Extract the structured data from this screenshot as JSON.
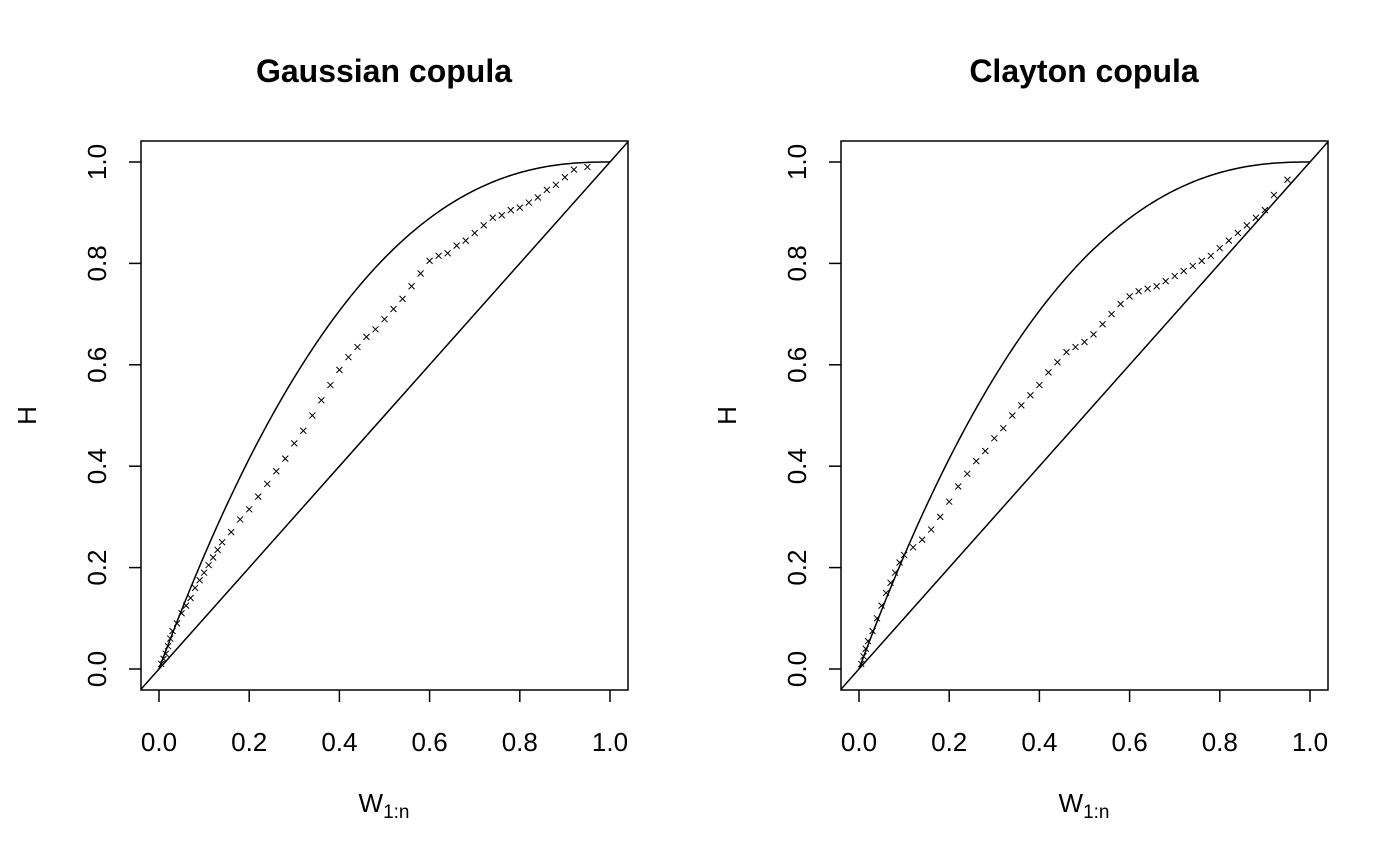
{
  "chart_data": [
    {
      "type": "scatter",
      "title": "Gaussian copula",
      "xlabel": "W",
      "xlabel_subscript": "1:n",
      "ylabel": "H",
      "xlim": [
        0.0,
        1.0
      ],
      "ylim": [
        0.0,
        1.0
      ],
      "xticks": [
        "0.0",
        "0.2",
        "0.4",
        "0.6",
        "0.8",
        "1.0"
      ],
      "yticks": [
        "0.0",
        "0.2",
        "0.4",
        "0.6",
        "0.8",
        "1.0"
      ],
      "grid": false,
      "marker": "x",
      "reference_curves": [
        "diagonal y = x",
        "upper bound curve from (0,0) to (1,1)"
      ],
      "series": [
        {
          "points": [
            [
              0.005,
              0.01
            ],
            [
              0.01,
              0.02
            ],
            [
              0.015,
              0.03
            ],
            [
              0.02,
              0.045
            ],
            [
              0.025,
              0.06
            ],
            [
              0.03,
              0.075
            ],
            [
              0.04,
              0.09
            ],
            [
              0.05,
              0.11
            ],
            [
              0.06,
              0.125
            ],
            [
              0.07,
              0.14
            ],
            [
              0.08,
              0.16
            ],
            [
              0.09,
              0.175
            ],
            [
              0.1,
              0.19
            ],
            [
              0.11,
              0.205
            ],
            [
              0.12,
              0.22
            ],
            [
              0.13,
              0.235
            ],
            [
              0.14,
              0.25
            ],
            [
              0.16,
              0.27
            ],
            [
              0.18,
              0.295
            ],
            [
              0.2,
              0.315
            ],
            [
              0.22,
              0.34
            ],
            [
              0.24,
              0.365
            ],
            [
              0.26,
              0.39
            ],
            [
              0.28,
              0.415
            ],
            [
              0.3,
              0.445
            ],
            [
              0.32,
              0.47
            ],
            [
              0.34,
              0.5
            ],
            [
              0.36,
              0.53
            ],
            [
              0.38,
              0.56
            ],
            [
              0.4,
              0.59
            ],
            [
              0.42,
              0.615
            ],
            [
              0.44,
              0.635
            ],
            [
              0.46,
              0.655
            ],
            [
              0.48,
              0.67
            ],
            [
              0.5,
              0.69
            ],
            [
              0.52,
              0.71
            ],
            [
              0.54,
              0.73
            ],
            [
              0.56,
              0.755
            ],
            [
              0.58,
              0.78
            ],
            [
              0.6,
              0.805
            ],
            [
              0.62,
              0.815
            ],
            [
              0.64,
              0.82
            ],
            [
              0.66,
              0.835
            ],
            [
              0.68,
              0.845
            ],
            [
              0.7,
              0.86
            ],
            [
              0.72,
              0.875
            ],
            [
              0.74,
              0.89
            ],
            [
              0.76,
              0.895
            ],
            [
              0.78,
              0.905
            ],
            [
              0.8,
              0.91
            ],
            [
              0.82,
              0.92
            ],
            [
              0.84,
              0.93
            ],
            [
              0.86,
              0.945
            ],
            [
              0.88,
              0.955
            ],
            [
              0.9,
              0.97
            ],
            [
              0.92,
              0.985
            ],
            [
              0.95,
              0.99
            ]
          ]
        }
      ]
    },
    {
      "type": "scatter",
      "title": "Clayton copula",
      "xlabel": "W",
      "xlabel_subscript": "1:n",
      "ylabel": "H",
      "xlim": [
        0.0,
        1.0
      ],
      "ylim": [
        0.0,
        1.0
      ],
      "xticks": [
        "0.0",
        "0.2",
        "0.4",
        "0.6",
        "0.8",
        "1.0"
      ],
      "yticks": [
        "0.0",
        "0.2",
        "0.4",
        "0.6",
        "0.8",
        "1.0"
      ],
      "grid": false,
      "marker": "x",
      "reference_curves": [
        "diagonal y = x",
        "upper bound curve from (0,0) to (1,1)"
      ],
      "series": [
        {
          "points": [
            [
              0.005,
              0.01
            ],
            [
              0.01,
              0.025
            ],
            [
              0.015,
              0.04
            ],
            [
              0.02,
              0.055
            ],
            [
              0.03,
              0.075
            ],
            [
              0.04,
              0.1
            ],
            [
              0.05,
              0.125
            ],
            [
              0.06,
              0.15
            ],
            [
              0.07,
              0.17
            ],
            [
              0.08,
              0.19
            ],
            [
              0.09,
              0.21
            ],
            [
              0.1,
              0.225
            ],
            [
              0.12,
              0.24
            ],
            [
              0.14,
              0.255
            ],
            [
              0.16,
              0.275
            ],
            [
              0.18,
              0.3
            ],
            [
              0.2,
              0.33
            ],
            [
              0.22,
              0.36
            ],
            [
              0.24,
              0.385
            ],
            [
              0.26,
              0.41
            ],
            [
              0.28,
              0.43
            ],
            [
              0.3,
              0.455
            ],
            [
              0.32,
              0.475
            ],
            [
              0.34,
              0.5
            ],
            [
              0.36,
              0.52
            ],
            [
              0.38,
              0.54
            ],
            [
              0.4,
              0.56
            ],
            [
              0.42,
              0.585
            ],
            [
              0.44,
              0.605
            ],
            [
              0.46,
              0.625
            ],
            [
              0.48,
              0.635
            ],
            [
              0.5,
              0.645
            ],
            [
              0.52,
              0.66
            ],
            [
              0.54,
              0.68
            ],
            [
              0.56,
              0.7
            ],
            [
              0.58,
              0.72
            ],
            [
              0.6,
              0.735
            ],
            [
              0.62,
              0.745
            ],
            [
              0.64,
              0.75
            ],
            [
              0.66,
              0.755
            ],
            [
              0.68,
              0.765
            ],
            [
              0.7,
              0.775
            ],
            [
              0.72,
              0.785
            ],
            [
              0.74,
              0.795
            ],
            [
              0.76,
              0.805
            ],
            [
              0.78,
              0.815
            ],
            [
              0.8,
              0.83
            ],
            [
              0.82,
              0.845
            ],
            [
              0.84,
              0.86
            ],
            [
              0.86,
              0.875
            ],
            [
              0.88,
              0.89
            ],
            [
              0.9,
              0.905
            ],
            [
              0.92,
              0.935
            ],
            [
              0.95,
              0.965
            ]
          ]
        }
      ]
    }
  ]
}
